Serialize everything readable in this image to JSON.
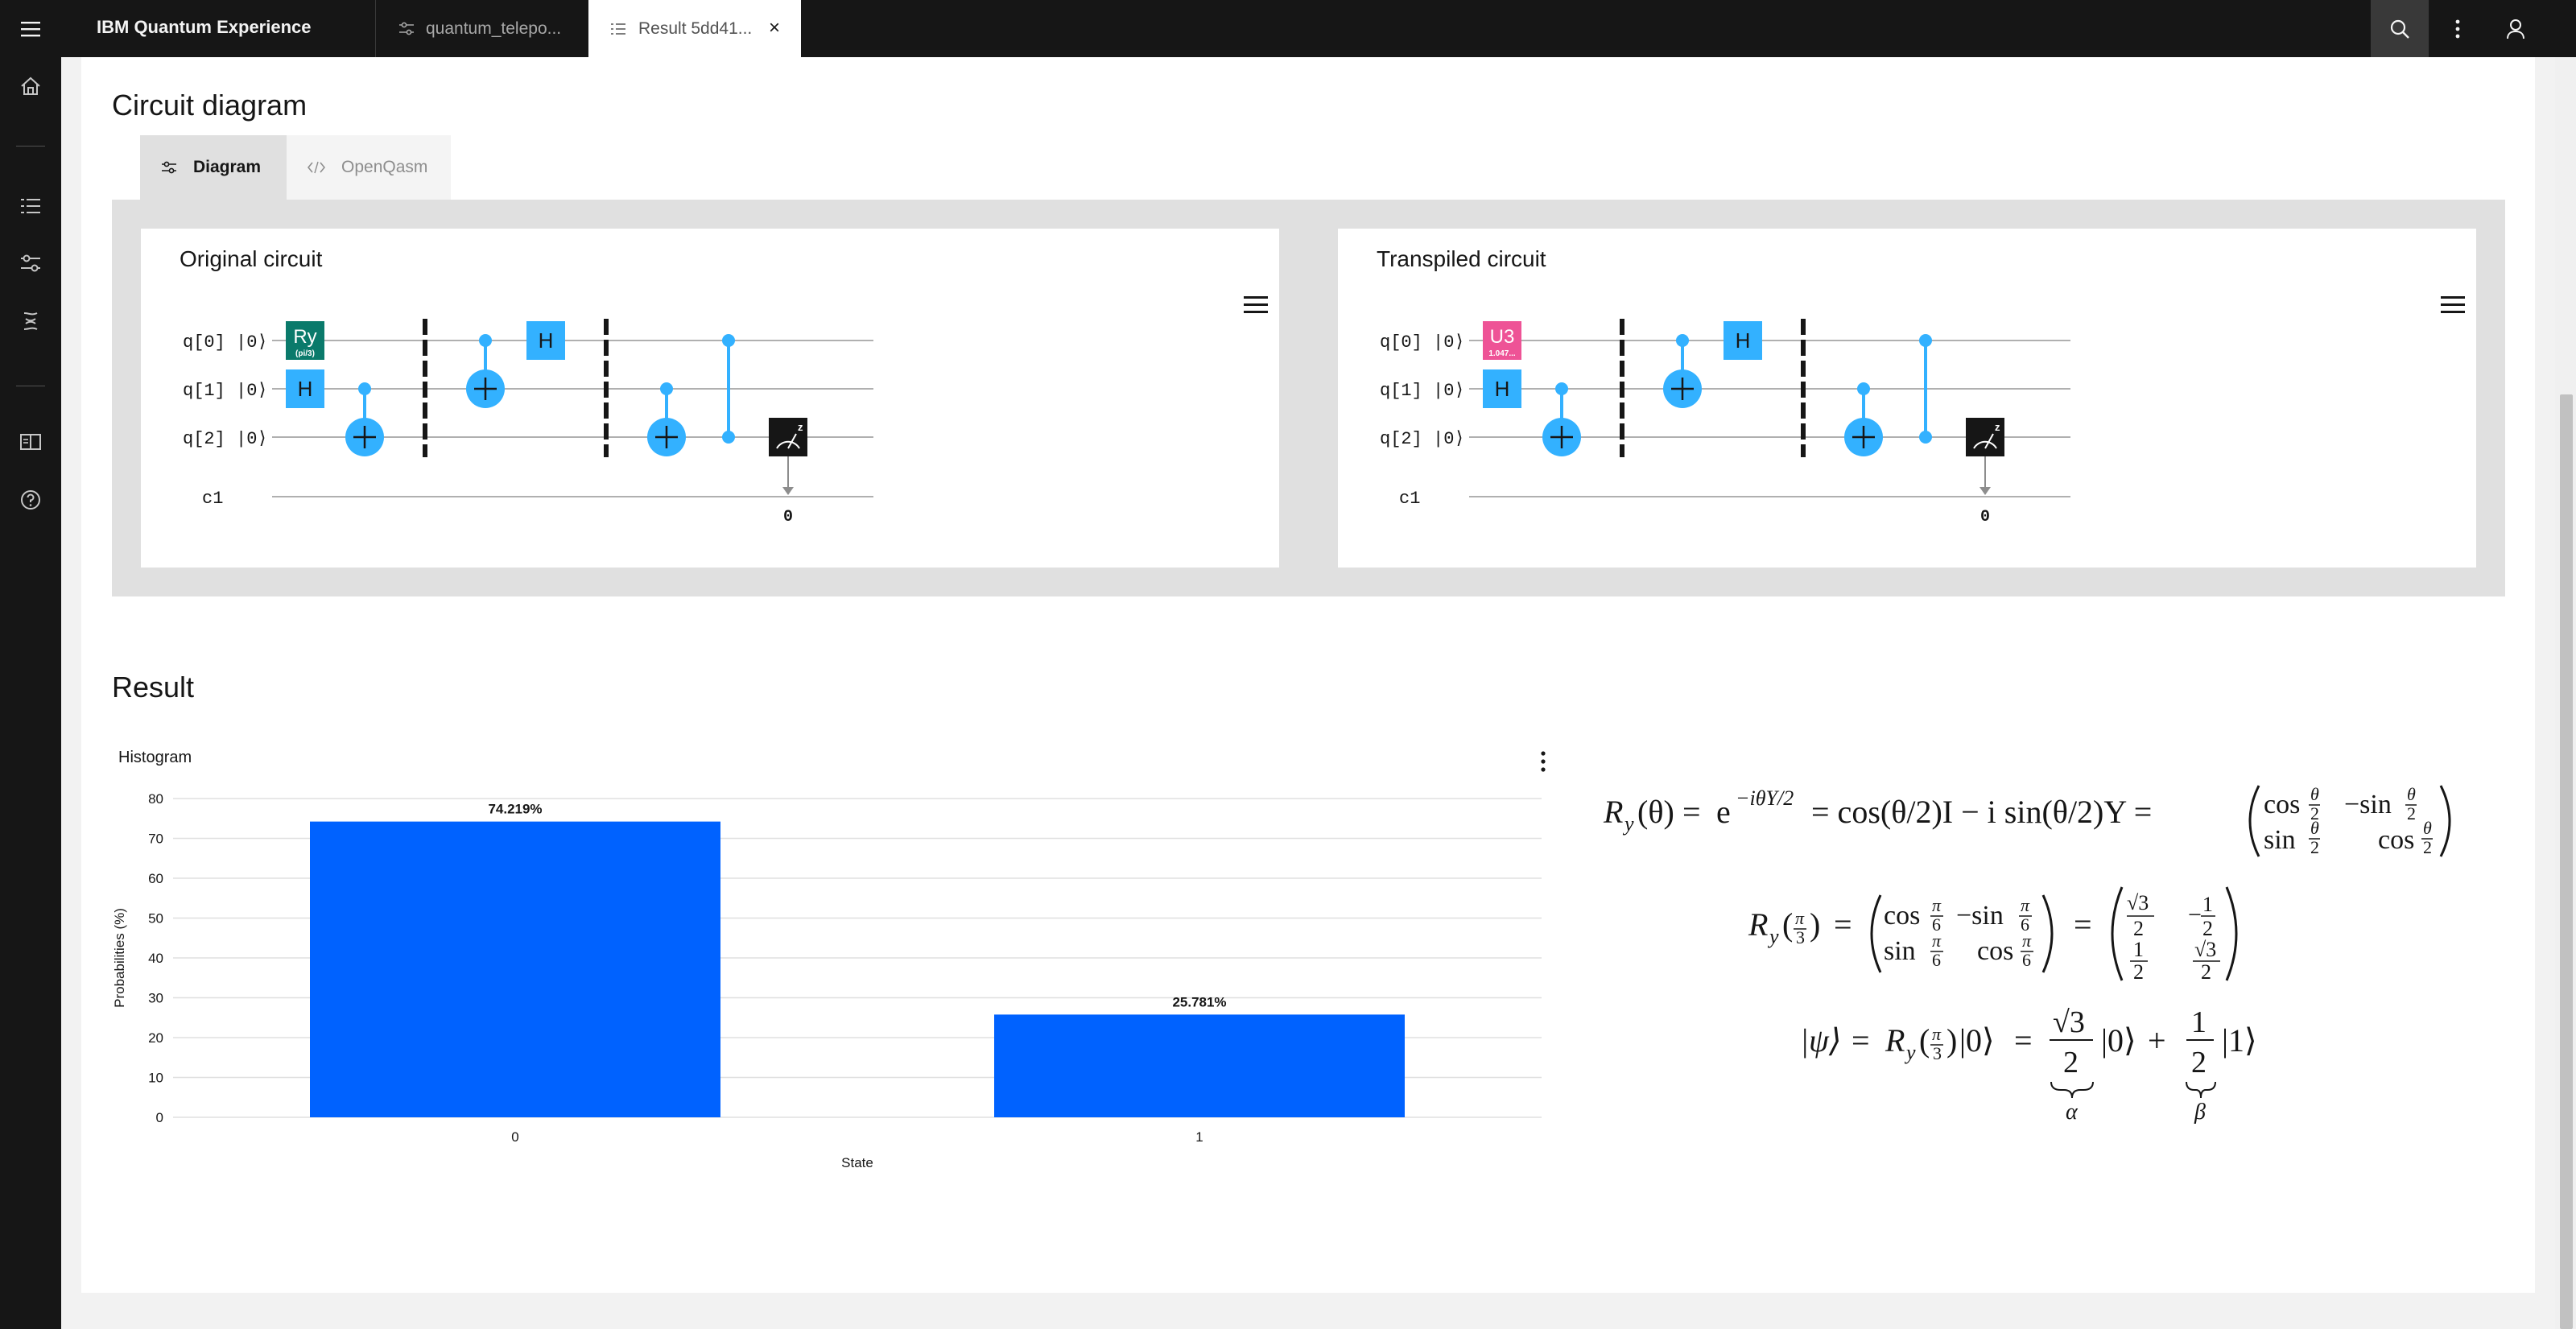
{
  "header": {
    "app_name": "IBM Quantum Experience",
    "tabs": [
      {
        "label": "quantum_telepo...",
        "active": false
      },
      {
        "label": "Result 5dd41...",
        "active": true
      }
    ],
    "close_glyph": "×"
  },
  "sections": {
    "circuit_diagram_title": "Circuit diagram",
    "result_title": "Result"
  },
  "view_tabs": [
    {
      "label": "Diagram",
      "active": true
    },
    {
      "label": "OpenQasm",
      "active": false
    }
  ],
  "circuits": {
    "original": {
      "title": "Original circuit",
      "qubits": [
        "q[0]",
        "q[1]",
        "q[2]"
      ],
      "init_state": "|0⟩",
      "classical": "c1",
      "first_gate": {
        "label": "Ry",
        "param": "(pi/3)",
        "color": "#0a7a6b"
      },
      "measure_bit": "0"
    },
    "transpiled": {
      "title": "Transpiled circuit",
      "qubits": [
        "q[0]",
        "q[1]",
        "q[2]"
      ],
      "init_state": "|0⟩",
      "classical": "c1",
      "first_gate": {
        "label": "U3",
        "param": "1.047...",
        "color": "#ee5396"
      },
      "measure_bit": "0"
    },
    "gate_labels": {
      "hadamard": "H",
      "measure": "z"
    },
    "gate_color": "#33b1ff"
  },
  "histogram": {
    "title": "Histogram",
    "chart_data": {
      "type": "bar",
      "categories": [
        "0",
        "1"
      ],
      "values": [
        74.219,
        25.781
      ],
      "value_labels": [
        "74.219%",
        "25.781%"
      ],
      "xlabel": "State",
      "ylabel": "Probabilities (%)",
      "ylim": [
        0,
        80
      ],
      "yticks": [
        0,
        10,
        20,
        30,
        40,
        50,
        60,
        70,
        80
      ],
      "bar_color": "#0062ff"
    }
  },
  "equations": {
    "eq1": {
      "lhs": "R",
      "sub": "y",
      "arg": "(θ)",
      "eq": "=",
      "e": "e",
      "exp": "−iθY/2",
      "mid": "= cos(θ/2)I − i sin(θ/2)Y =",
      "m11": "cos",
      "m12": "−sin",
      "m21": "sin",
      "m22": "cos",
      "theta": "θ",
      "two": "2"
    },
    "eq2": {
      "pi": "π",
      "three": "3",
      "six": "6",
      "two": "2",
      "one": "1",
      "sqrt3": "√3",
      "cos": "cos",
      "sin": "sin",
      "neg_sin": "−sin",
      "neg": "−"
    },
    "eq3": {
      "psi": "|ψ⟩",
      "ket0": "|0⟩",
      "ket1": "|1⟩",
      "plus": "+",
      "alpha": "α",
      "beta": "β"
    }
  }
}
